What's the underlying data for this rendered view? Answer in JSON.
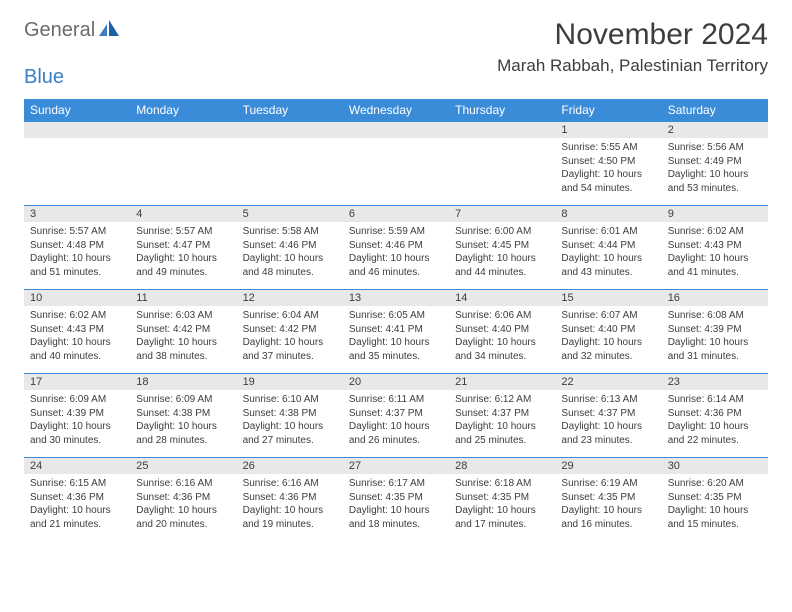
{
  "logo": {
    "text1": "General",
    "text2": "Blue"
  },
  "title": "November 2024",
  "location": "Marah Rabbah, Palestinian Territory",
  "colors": {
    "header_bg": "#3a8bd8",
    "header_text": "#ffffff",
    "daynum_bg": "#e8e8e8",
    "text": "#3d3d3d",
    "logo_gray": "#6b6b6b",
    "logo_blue": "#3a7fc4",
    "rule": "#3a8bd8",
    "page_bg": "#ffffff"
  },
  "weekdays": [
    "Sunday",
    "Monday",
    "Tuesday",
    "Wednesday",
    "Thursday",
    "Friday",
    "Saturday"
  ],
  "weeks": [
    [
      null,
      null,
      null,
      null,
      null,
      {
        "d": "1",
        "sr": "5:55 AM",
        "ss": "4:50 PM",
        "dl": "10 hours and 54 minutes."
      },
      {
        "d": "2",
        "sr": "5:56 AM",
        "ss": "4:49 PM",
        "dl": "10 hours and 53 minutes."
      }
    ],
    [
      {
        "d": "3",
        "sr": "5:57 AM",
        "ss": "4:48 PM",
        "dl": "10 hours and 51 minutes."
      },
      {
        "d": "4",
        "sr": "5:57 AM",
        "ss": "4:47 PM",
        "dl": "10 hours and 49 minutes."
      },
      {
        "d": "5",
        "sr": "5:58 AM",
        "ss": "4:46 PM",
        "dl": "10 hours and 48 minutes."
      },
      {
        "d": "6",
        "sr": "5:59 AM",
        "ss": "4:46 PM",
        "dl": "10 hours and 46 minutes."
      },
      {
        "d": "7",
        "sr": "6:00 AM",
        "ss": "4:45 PM",
        "dl": "10 hours and 44 minutes."
      },
      {
        "d": "8",
        "sr": "6:01 AM",
        "ss": "4:44 PM",
        "dl": "10 hours and 43 minutes."
      },
      {
        "d": "9",
        "sr": "6:02 AM",
        "ss": "4:43 PM",
        "dl": "10 hours and 41 minutes."
      }
    ],
    [
      {
        "d": "10",
        "sr": "6:02 AM",
        "ss": "4:43 PM",
        "dl": "10 hours and 40 minutes."
      },
      {
        "d": "11",
        "sr": "6:03 AM",
        "ss": "4:42 PM",
        "dl": "10 hours and 38 minutes."
      },
      {
        "d": "12",
        "sr": "6:04 AM",
        "ss": "4:42 PM",
        "dl": "10 hours and 37 minutes."
      },
      {
        "d": "13",
        "sr": "6:05 AM",
        "ss": "4:41 PM",
        "dl": "10 hours and 35 minutes."
      },
      {
        "d": "14",
        "sr": "6:06 AM",
        "ss": "4:40 PM",
        "dl": "10 hours and 34 minutes."
      },
      {
        "d": "15",
        "sr": "6:07 AM",
        "ss": "4:40 PM",
        "dl": "10 hours and 32 minutes."
      },
      {
        "d": "16",
        "sr": "6:08 AM",
        "ss": "4:39 PM",
        "dl": "10 hours and 31 minutes."
      }
    ],
    [
      {
        "d": "17",
        "sr": "6:09 AM",
        "ss": "4:39 PM",
        "dl": "10 hours and 30 minutes."
      },
      {
        "d": "18",
        "sr": "6:09 AM",
        "ss": "4:38 PM",
        "dl": "10 hours and 28 minutes."
      },
      {
        "d": "19",
        "sr": "6:10 AM",
        "ss": "4:38 PM",
        "dl": "10 hours and 27 minutes."
      },
      {
        "d": "20",
        "sr": "6:11 AM",
        "ss": "4:37 PM",
        "dl": "10 hours and 26 minutes."
      },
      {
        "d": "21",
        "sr": "6:12 AM",
        "ss": "4:37 PM",
        "dl": "10 hours and 25 minutes."
      },
      {
        "d": "22",
        "sr": "6:13 AM",
        "ss": "4:37 PM",
        "dl": "10 hours and 23 minutes."
      },
      {
        "d": "23",
        "sr": "6:14 AM",
        "ss": "4:36 PM",
        "dl": "10 hours and 22 minutes."
      }
    ],
    [
      {
        "d": "24",
        "sr": "6:15 AM",
        "ss": "4:36 PM",
        "dl": "10 hours and 21 minutes."
      },
      {
        "d": "25",
        "sr": "6:16 AM",
        "ss": "4:36 PM",
        "dl": "10 hours and 20 minutes."
      },
      {
        "d": "26",
        "sr": "6:16 AM",
        "ss": "4:36 PM",
        "dl": "10 hours and 19 minutes."
      },
      {
        "d": "27",
        "sr": "6:17 AM",
        "ss": "4:35 PM",
        "dl": "10 hours and 18 minutes."
      },
      {
        "d": "28",
        "sr": "6:18 AM",
        "ss": "4:35 PM",
        "dl": "10 hours and 17 minutes."
      },
      {
        "d": "29",
        "sr": "6:19 AM",
        "ss": "4:35 PM",
        "dl": "10 hours and 16 minutes."
      },
      {
        "d": "30",
        "sr": "6:20 AM",
        "ss": "4:35 PM",
        "dl": "10 hours and 15 minutes."
      }
    ]
  ],
  "labels": {
    "sunrise": "Sunrise:",
    "sunset": "Sunset:",
    "daylight": "Daylight:"
  }
}
